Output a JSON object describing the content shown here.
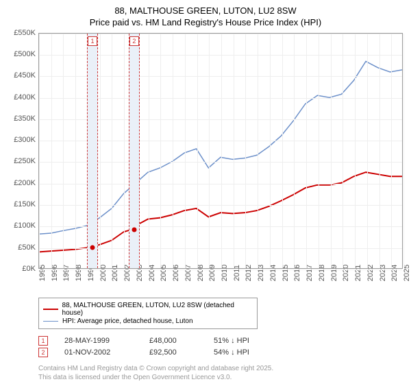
{
  "title_line1": "88, MALTHOUSE GREEN, LUTON, LU2 8SW",
  "title_line2": "Price paid vs. HM Land Registry's House Price Index (HPI)",
  "chart": {
    "type": "line",
    "xlim_year": [
      1995,
      2025
    ],
    "ylim": [
      0,
      550
    ],
    "ytick_step": 50,
    "y_unit_suffix": "K",
    "y_prefix": "£",
    "x_years": [
      1995,
      1996,
      1997,
      1998,
      1999,
      2000,
      2001,
      2002,
      2003,
      2004,
      2005,
      2006,
      2007,
      2008,
      2009,
      2010,
      2011,
      2012,
      2013,
      2014,
      2015,
      2016,
      2017,
      2018,
      2019,
      2020,
      2021,
      2022,
      2023,
      2024,
      2025
    ],
    "background_color": "#ffffff",
    "grid_color": "#eeeeee",
    "axis_font_size": 11,
    "axis_color": "#555555",
    "plot_border_color": "#999999",
    "series": [
      {
        "name": "property",
        "label": "88, MALTHOUSE GREEN, LUTON, LU2 8SW (detached house)",
        "color": "#cc0000",
        "line_width": 2,
        "points": [
          [
            1995,
            38
          ],
          [
            1996,
            40
          ],
          [
            1997,
            42
          ],
          [
            1998,
            44
          ],
          [
            1999,
            48
          ],
          [
            2000,
            55
          ],
          [
            2001,
            65
          ],
          [
            2002,
            85
          ],
          [
            2002.83,
            92
          ],
          [
            2003,
            100
          ],
          [
            2004,
            115
          ],
          [
            2005,
            118
          ],
          [
            2006,
            125
          ],
          [
            2007,
            135
          ],
          [
            2008,
            140
          ],
          [
            2009,
            120
          ],
          [
            2010,
            130
          ],
          [
            2011,
            128
          ],
          [
            2012,
            130
          ],
          [
            2013,
            135
          ],
          [
            2014,
            145
          ],
          [
            2015,
            158
          ],
          [
            2016,
            172
          ],
          [
            2017,
            188
          ],
          [
            2018,
            195
          ],
          [
            2019,
            195
          ],
          [
            2020,
            200
          ],
          [
            2021,
            215
          ],
          [
            2022,
            225
          ],
          [
            2023,
            220
          ],
          [
            2024,
            215
          ],
          [
            2025,
            215
          ]
        ]
      },
      {
        "name": "hpi",
        "label": "HPI: Average price, detached house, Luton",
        "color": "#6b8fc9",
        "line_width": 1.5,
        "points": [
          [
            1995,
            80
          ],
          [
            1996,
            82
          ],
          [
            1997,
            88
          ],
          [
            1998,
            93
          ],
          [
            1999,
            100
          ],
          [
            2000,
            118
          ],
          [
            2001,
            140
          ],
          [
            2002,
            175
          ],
          [
            2003,
            200
          ],
          [
            2004,
            225
          ],
          [
            2005,
            235
          ],
          [
            2006,
            250
          ],
          [
            2007,
            270
          ],
          [
            2008,
            280
          ],
          [
            2009,
            235
          ],
          [
            2010,
            260
          ],
          [
            2011,
            255
          ],
          [
            2012,
            258
          ],
          [
            2013,
            265
          ],
          [
            2014,
            285
          ],
          [
            2015,
            310
          ],
          [
            2016,
            345
          ],
          [
            2017,
            385
          ],
          [
            2018,
            405
          ],
          [
            2019,
            400
          ],
          [
            2020,
            408
          ],
          [
            2021,
            440
          ],
          [
            2022,
            485
          ],
          [
            2023,
            470
          ],
          [
            2024,
            460
          ],
          [
            2025,
            465
          ]
        ]
      }
    ],
    "markers": [
      {
        "index": 1,
        "year": 1999.4,
        "band_width_years": 0.9,
        "dot_series": "property",
        "dot_color": "#cc0000"
      },
      {
        "index": 2,
        "year": 2002.83,
        "band_width_years": 0.9,
        "dot_series": "property",
        "dot_color": "#cc0000"
      }
    ]
  },
  "legend": {
    "border_color": "#999999",
    "font_size": 10
  },
  "sales": [
    {
      "index": "1",
      "date": "28-MAY-1999",
      "price": "£48,000",
      "ratio": "51% ↓ HPI"
    },
    {
      "index": "2",
      "date": "01-NOV-2002",
      "price": "£92,500",
      "ratio": "54% ↓ HPI"
    }
  ],
  "footer_line1": "Contains HM Land Registry data © Crown copyright and database right 2025.",
  "footer_line2": "This data is licensed under the Open Government Licence v3.0."
}
